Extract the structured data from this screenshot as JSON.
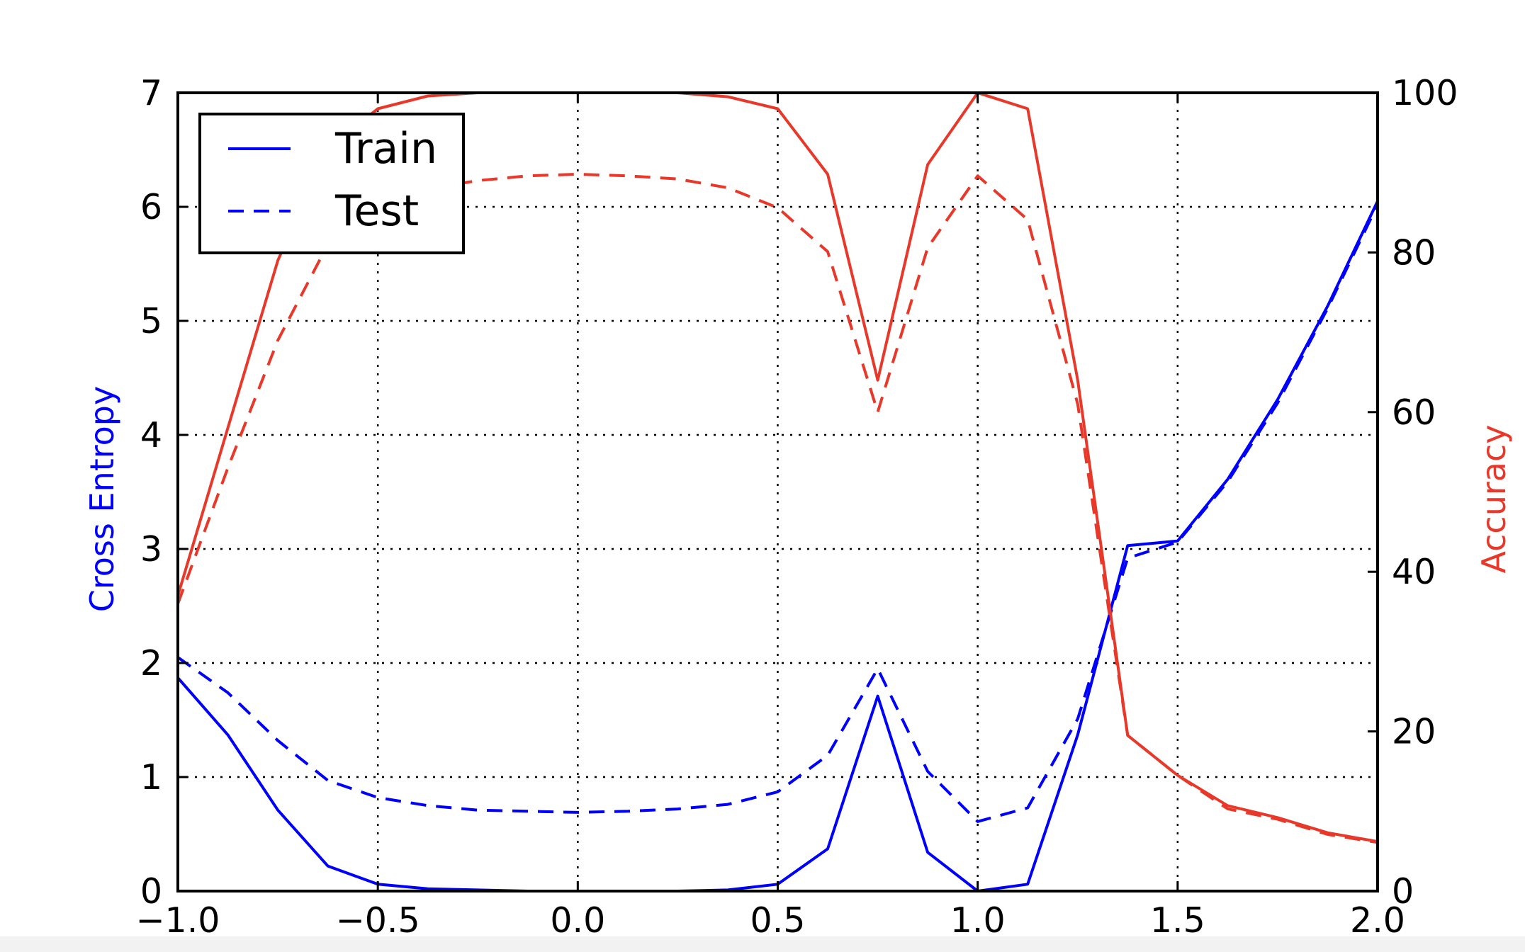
{
  "chart_data": {
    "type": "line",
    "x_ticks": [
      "−1.0",
      "−0.5",
      "0.0",
      "0.5",
      "1.0",
      "1.5",
      "2.0"
    ],
    "y_left_ticks": [
      "0",
      "1",
      "2",
      "3",
      "4",
      "5",
      "6",
      "7"
    ],
    "y_right_ticks": [
      "0",
      "20",
      "40",
      "60",
      "80",
      "100"
    ],
    "xlim": [
      -1.0,
      2.0
    ],
    "ylim_left": [
      0,
      7
    ],
    "ylim_right": [
      0,
      100
    ],
    "ylabel_left": "Cross Entropy",
    "ylabel_right": "Accuracy",
    "grid": true,
    "legend": {
      "position": "upper-left",
      "entries": [
        "Train",
        "Test"
      ]
    },
    "colors": {
      "loss": "#0000ff",
      "accuracy": "#e8382a"
    },
    "x": [
      -1.0,
      -0.875,
      -0.75,
      -0.625,
      -0.5,
      -0.375,
      -0.25,
      -0.125,
      0.0,
      0.125,
      0.25,
      0.375,
      0.5,
      0.625,
      0.75,
      0.875,
      1.0,
      1.125,
      1.25,
      1.375,
      1.5,
      1.625,
      1.75,
      1.875,
      2.0
    ],
    "series": [
      {
        "name": "Train",
        "axis": "left",
        "style": "solid",
        "color": "#0000ff",
        "values": [
          1.87,
          1.37,
          0.71,
          0.22,
          0.06,
          0.02,
          0.01,
          0.0,
          0.0,
          0.0,
          0.0,
          0.01,
          0.06,
          0.37,
          1.71,
          0.34,
          0.0,
          0.06,
          1.37,
          3.03,
          3.07,
          3.61,
          4.31,
          5.13,
          6.05
        ]
      },
      {
        "name": "Test",
        "axis": "left",
        "style": "dashed",
        "color": "#0000ff",
        "values": [
          2.05,
          1.74,
          1.32,
          0.97,
          0.82,
          0.75,
          0.71,
          0.7,
          0.69,
          0.7,
          0.72,
          0.76,
          0.87,
          1.19,
          1.95,
          1.05,
          0.61,
          0.73,
          1.51,
          2.92,
          3.06,
          3.59,
          4.28,
          5.11,
          6.02
        ]
      },
      {
        "name": "",
        "axis": "right",
        "style": "solid",
        "color": "#e8382a",
        "values": [
          37,
          58,
          79,
          93,
          98,
          99.6,
          100,
          100,
          100,
          100,
          100,
          99.5,
          98,
          89.8,
          64,
          91,
          100,
          98,
          64,
          19.5,
          14.5,
          10.7,
          9.2,
          7.3,
          6.2
        ]
      },
      {
        "name": "",
        "axis": "right",
        "style": "dashed",
        "color": "#e8382a",
        "values": [
          36,
          53,
          69,
          81,
          86,
          88,
          89,
          89.6,
          89.8,
          89.6,
          89.2,
          88.1,
          85.6,
          80.1,
          60,
          80.6,
          89.6,
          84.1,
          61,
          19.5,
          14.5,
          10.3,
          9.0,
          7.1,
          6.1
        ]
      }
    ]
  }
}
